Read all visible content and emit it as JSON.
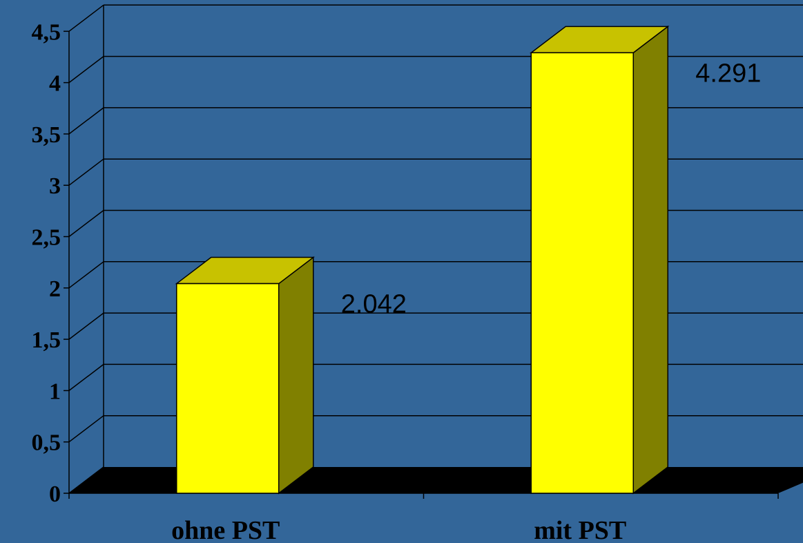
{
  "chart_data": {
    "type": "bar",
    "categories": [
      "ohne PST",
      "mit PST"
    ],
    "series": [
      {
        "values": [
          2.042,
          4.291
        ],
        "data_labels": [
          "2.042",
          "4.291"
        ]
      }
    ],
    "ylim": [
      0,
      4.5
    ],
    "y_ticks": [
      "0",
      "0,5",
      "1",
      "1,5",
      "2",
      "2,5",
      "3",
      "3,5",
      "4",
      "4,5"
    ],
    "y_tick_values": [
      0,
      0.5,
      1,
      1.5,
      2,
      2.5,
      3,
      3.5,
      4,
      4.5
    ],
    "grid": true,
    "legend": "none",
    "three_d": true
  },
  "colors": {
    "background": "#336699",
    "bar_front": "#FFFF00",
    "bar_top": "#C8C200",
    "bar_side": "#808000",
    "floor": "#000000",
    "gridline": "#000000"
  }
}
